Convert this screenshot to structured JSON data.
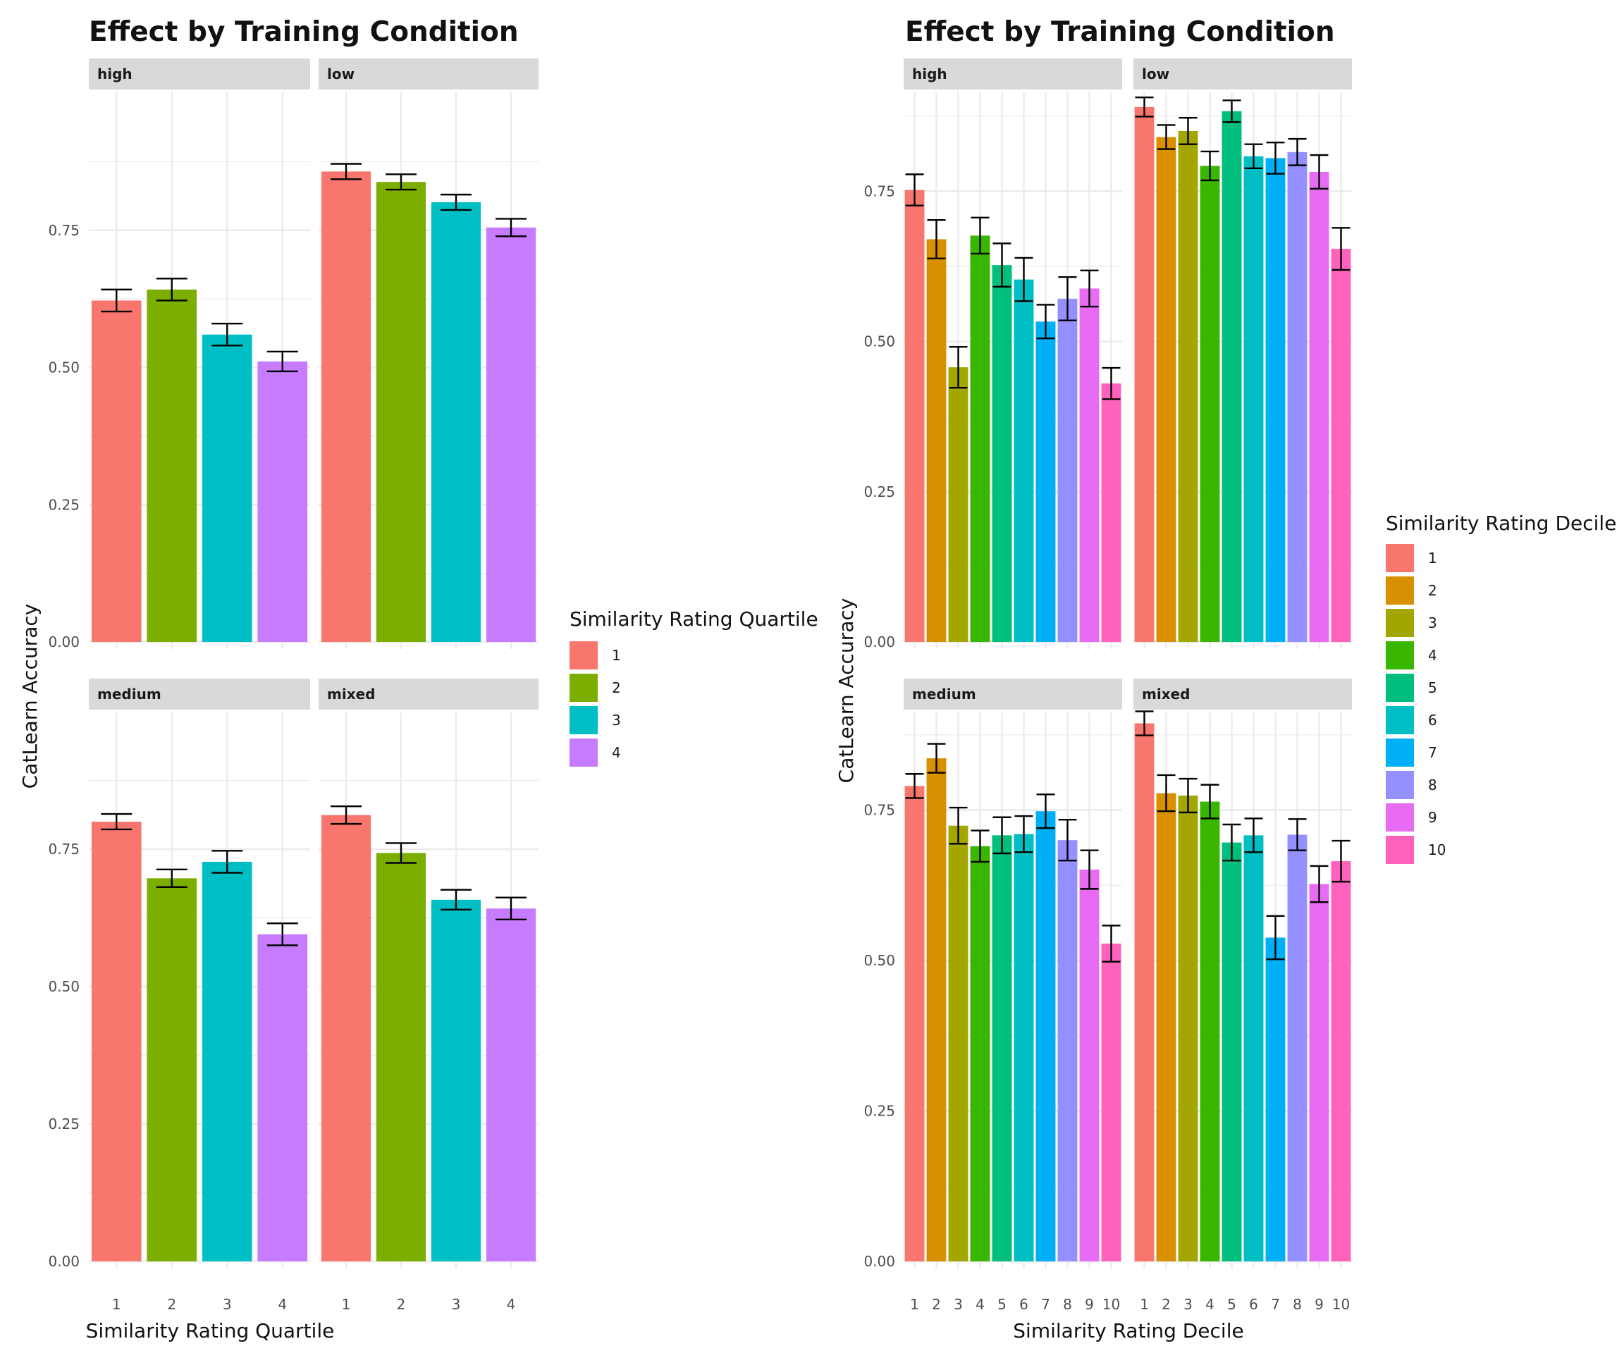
{
  "chart_data": [
    {
      "type": "bar",
      "title": "Effect by Training Condition",
      "xlabel": "Similarity Rating Quartile",
      "ylabel": "CatLearn Accuracy",
      "legend_title": "Similarity Rating Quartile",
      "legend_position": "right",
      "grid": true,
      "ylim": [
        0,
        0.9
      ],
      "yticks": [
        "0.00",
        "0.25",
        "0.50",
        "0.75"
      ],
      "categories": [
        "1",
        "2",
        "3",
        "4"
      ],
      "colors": [
        "#F8766D",
        "#7CAE00",
        "#00BFC4",
        "#C77CFF"
      ],
      "facets": [
        {
          "name": "high",
          "values": [
            0.622,
            0.642,
            0.56,
            0.511
          ],
          "errors": [
            0.02,
            0.02,
            0.02,
            0.018
          ]
        },
        {
          "name": "low",
          "values": [
            0.857,
            0.838,
            0.801,
            0.755
          ],
          "errors": [
            0.014,
            0.014,
            0.014,
            0.016
          ]
        },
        {
          "name": "medium",
          "values": [
            0.8,
            0.697,
            0.727,
            0.595
          ],
          "errors": [
            0.014,
            0.016,
            0.02,
            0.02
          ]
        },
        {
          "name": "mixed",
          "values": [
            0.812,
            0.743,
            0.658,
            0.642
          ],
          "errors": [
            0.016,
            0.018,
            0.018,
            0.02
          ]
        }
      ]
    },
    {
      "type": "bar",
      "title": "Effect by Training Condition",
      "xlabel": "Similarity Rating Decile",
      "ylabel": "CatLearn Accuracy",
      "legend_title": "Similarity Rating Decile",
      "legend_position": "right",
      "grid": true,
      "ylim": [
        0,
        0.96
      ],
      "yticks": [
        "0.00",
        "0.25",
        "0.50",
        "0.75"
      ],
      "categories": [
        "1",
        "2",
        "3",
        "4",
        "5",
        "6",
        "7",
        "8",
        "9",
        "10"
      ],
      "colors": [
        "#F8766D",
        "#D89000",
        "#A3A500",
        "#39B600",
        "#00BF7D",
        "#00BFC4",
        "#00B0F6",
        "#9590FF",
        "#E76BF3",
        "#FF62BC"
      ],
      "facets": [
        {
          "name": "high",
          "values": [
            0.752,
            0.67,
            0.457,
            0.676,
            0.627,
            0.603,
            0.533,
            0.571,
            0.588,
            0.43
          ],
          "errors": [
            0.026,
            0.032,
            0.034,
            0.03,
            0.036,
            0.036,
            0.028,
            0.036,
            0.03,
            0.026
          ]
        },
        {
          "name": "low",
          "values": [
            0.89,
            0.84,
            0.85,
            0.792,
            0.883,
            0.808,
            0.805,
            0.815,
            0.782,
            0.654
          ],
          "errors": [
            0.016,
            0.02,
            0.022,
            0.024,
            0.018,
            0.02,
            0.026,
            0.022,
            0.028,
            0.035
          ]
        },
        {
          "name": "medium",
          "values": [
            0.79,
            0.836,
            0.724,
            0.69,
            0.708,
            0.71,
            0.748,
            0.7,
            0.651,
            0.528
          ],
          "errors": [
            0.02,
            0.024,
            0.03,
            0.026,
            0.03,
            0.03,
            0.028,
            0.034,
            0.032,
            0.03
          ]
        },
        {
          "name": "mixed",
          "values": [
            0.894,
            0.778,
            0.774,
            0.764,
            0.696,
            0.708,
            0.538,
            0.709,
            0.627,
            0.665
          ],
          "errors": [
            0.02,
            0.03,
            0.028,
            0.028,
            0.03,
            0.028,
            0.036,
            0.026,
            0.03,
            0.034
          ]
        }
      ]
    }
  ]
}
